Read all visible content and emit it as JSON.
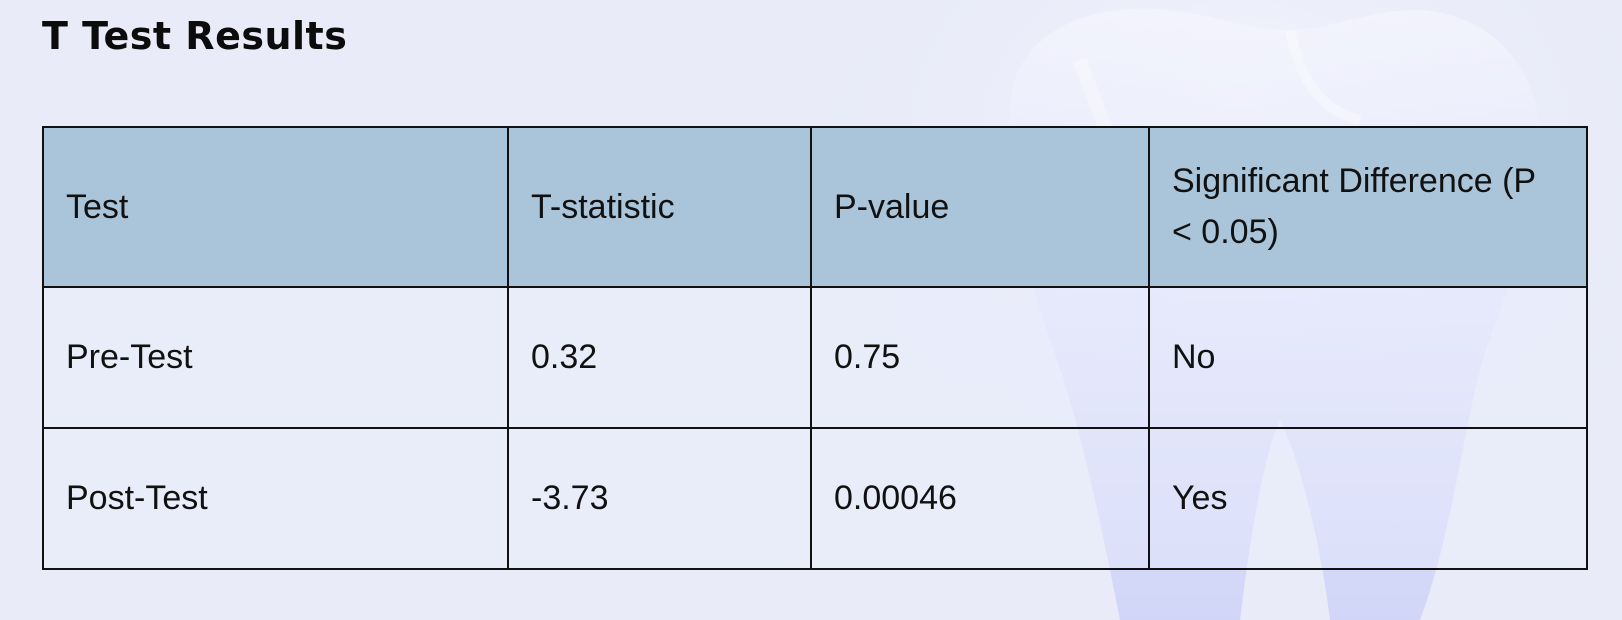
{
  "page": {
    "title": "T Test Results",
    "background_color": "#e9ebf8",
    "header_color": "#aac5d9"
  },
  "table": {
    "headers": [
      "Test",
      "T-statistic",
      "P-value",
      "Significant Difference (P < 0.05)"
    ],
    "rows": [
      [
        "Pre-Test",
        "0.32",
        "0.75",
        "No"
      ],
      [
        "Post-Test",
        "-3.73",
        "0.00046",
        "Yes"
      ]
    ]
  }
}
